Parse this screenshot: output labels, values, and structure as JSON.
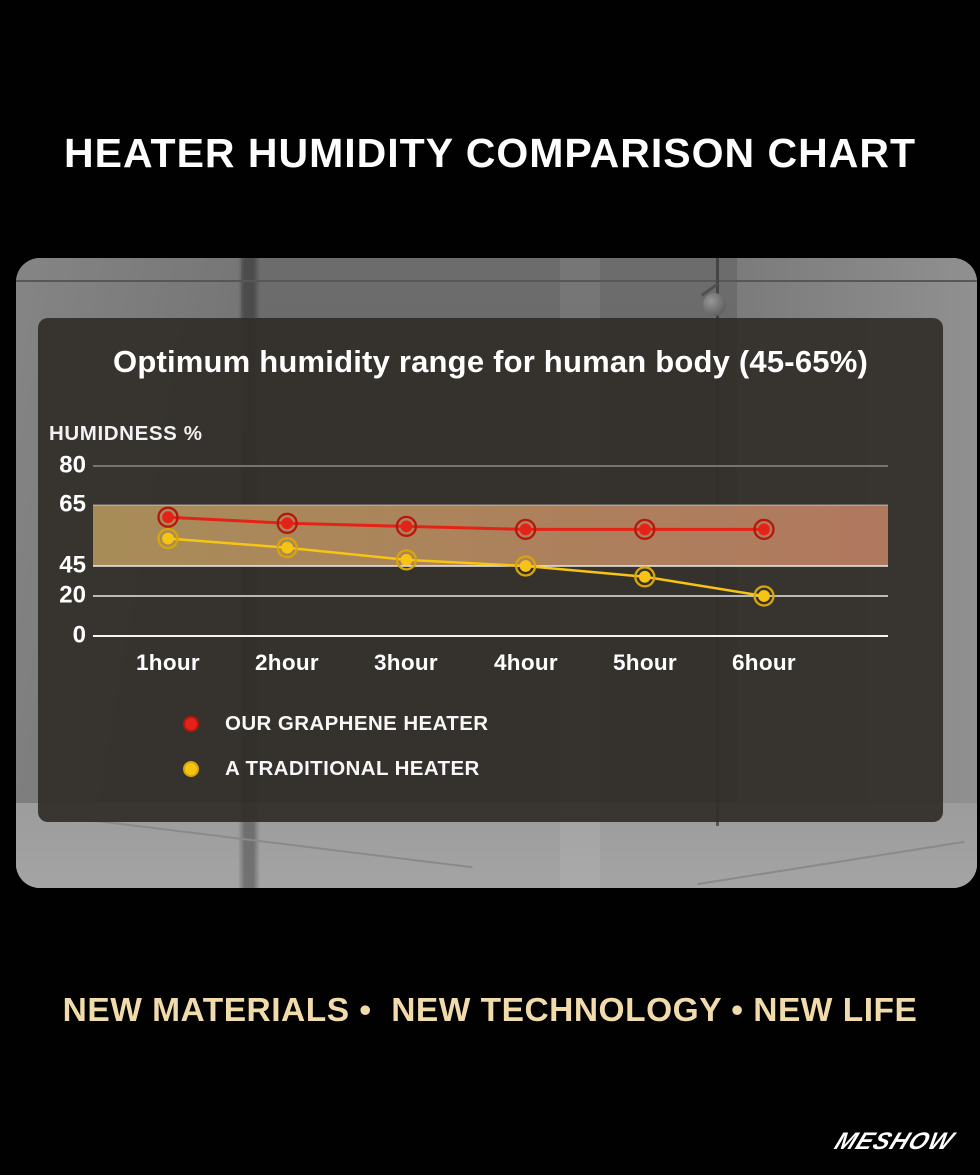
{
  "header": {
    "title": "HEATER HUMIDITY COMPARISON CHART"
  },
  "chart_data": {
    "type": "line",
    "title": "Optimum humidity range for human body (45-65%)",
    "ylabel": "HUMIDNESS %",
    "xlabel": "",
    "categories": [
      "1hour",
      "2hour",
      "3hour",
      "4hour",
      "5hour",
      "6hour"
    ],
    "series": [
      {
        "name": "OUR GRAPHENE HEATER",
        "color": "#e42318",
        "ring_color": "#b5170d",
        "values": [
          61,
          59,
          58,
          57,
          57,
          57
        ]
      },
      {
        "name": "A TRADITIONAL HEATER",
        "color": "#f6c513",
        "ring_color": "#d8a50a",
        "values": [
          54,
          51,
          47,
          45,
          36,
          20
        ]
      }
    ],
    "y_ticks": [
      80,
      65,
      45,
      20,
      0
    ],
    "ylim": [
      0,
      80
    ],
    "optimal_band": {
      "from": 45,
      "to": 65,
      "color_left": "#ad905a",
      "color_right": "#b57b61"
    },
    "grid": true,
    "legend_position": "bottom-left"
  },
  "footer": {
    "tagline": "NEW MATERIALS •  NEW TECHNOLOGY • NEW LIFE",
    "brand": "MESHOW"
  },
  "colors": {
    "page_background": "#010101",
    "panel_background": "#38342e",
    "title_text": "#fdfdfd",
    "tagline_text": "#f1dbab",
    "gridline": "#eeeeee"
  }
}
